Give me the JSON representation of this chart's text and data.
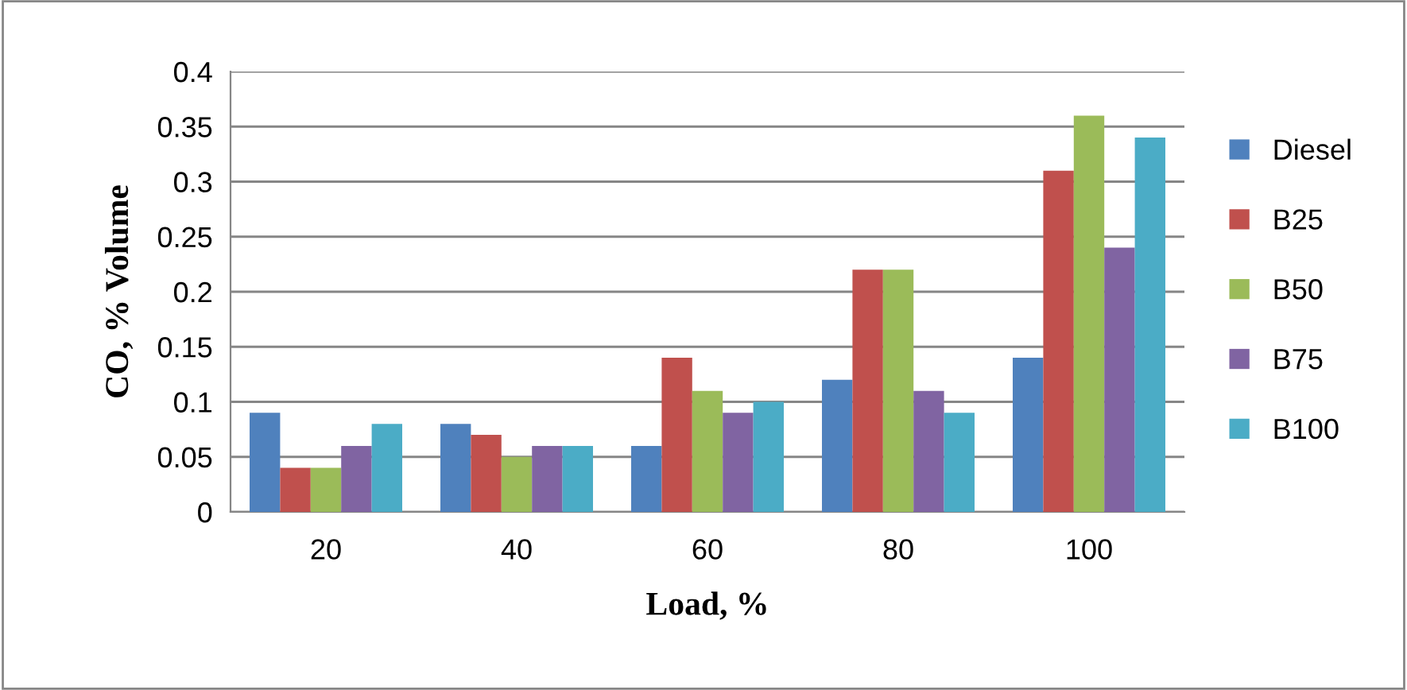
{
  "chart_data": {
    "type": "bar",
    "xlabel": "Load, %",
    "ylabel": "CO, % Volume",
    "categories": [
      "20",
      "40",
      "60",
      "80",
      "100"
    ],
    "series": [
      {
        "name": "Diesel",
        "color": "#4f81bd",
        "values": [
          0.09,
          0.08,
          0.06,
          0.12,
          0.14
        ]
      },
      {
        "name": "B25",
        "color": "#c0504d",
        "values": [
          0.04,
          0.07,
          0.14,
          0.22,
          0.31
        ]
      },
      {
        "name": "B50",
        "color": "#9bbb59",
        "values": [
          0.04,
          0.05,
          0.11,
          0.22,
          0.36
        ]
      },
      {
        "name": "B75",
        "color": "#8064a2",
        "values": [
          0.06,
          0.06,
          0.09,
          0.11,
          0.24
        ]
      },
      {
        "name": "B100",
        "color": "#4bacc6",
        "values": [
          0.08,
          0.06,
          0.1,
          0.09,
          0.34
        ]
      }
    ],
    "ylim": [
      0,
      0.4
    ],
    "yticks": [
      0,
      0.05,
      0.1,
      0.15,
      0.2,
      0.25,
      0.3,
      0.35,
      0.4
    ],
    "grid": "y",
    "legend": "right"
  }
}
